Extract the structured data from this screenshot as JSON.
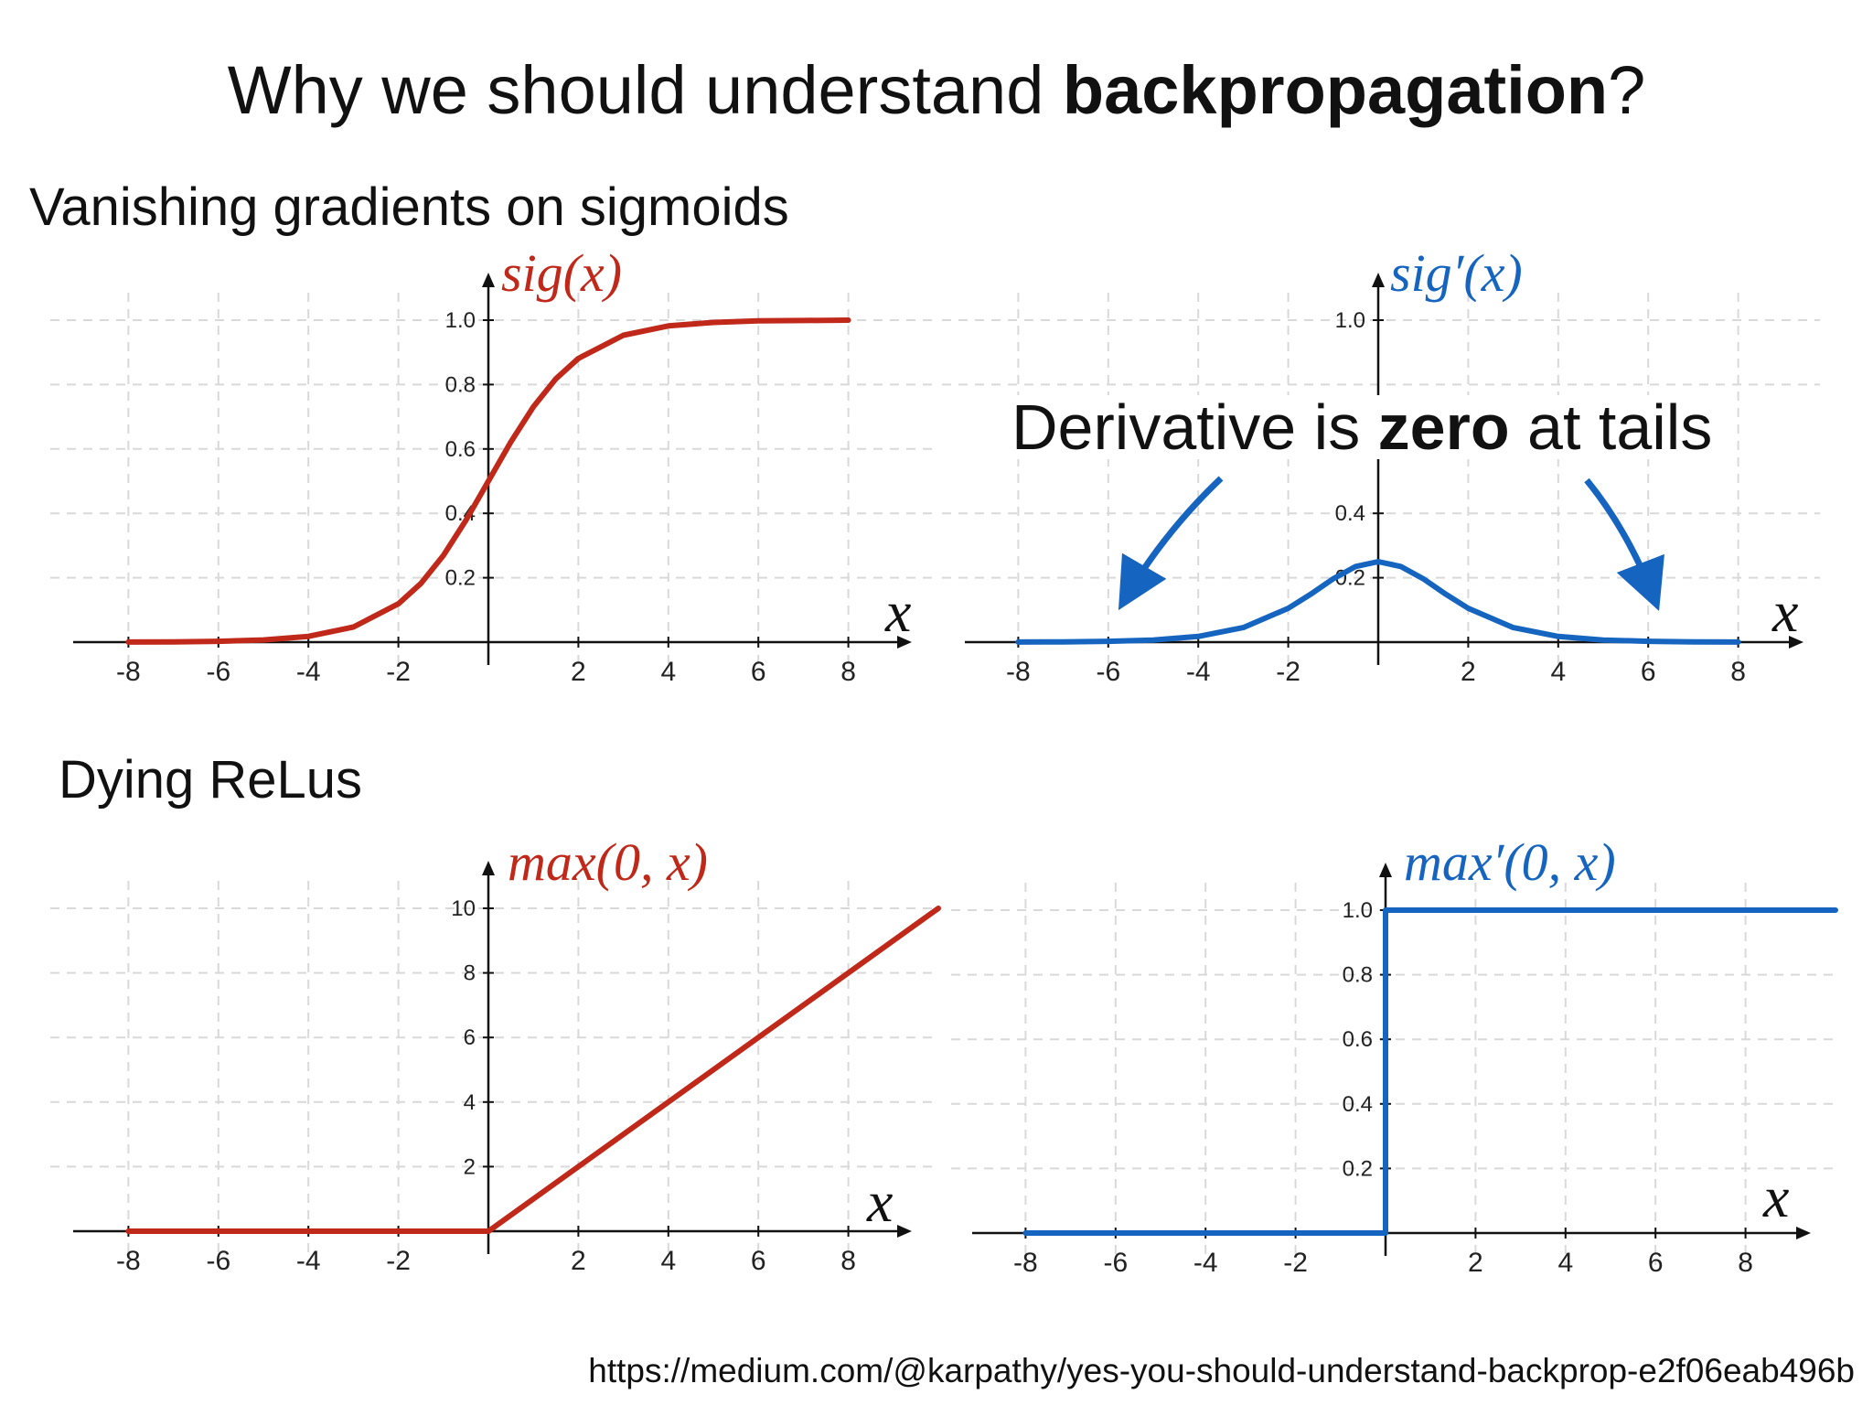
{
  "page": {
    "title_pre": "Why we should understand ",
    "title_bold": "backpropagation",
    "title_post": "?",
    "section_sigmoid": "Vanishing gradients on sigmoids",
    "section_relu": "Dying ReLus",
    "callout_pre": "Derivative is ",
    "callout_bold": "zero",
    "callout_post": " at tails",
    "url": "https://medium.com/@karpathy/yes-you-should-understand-backprop-e2f06eab496b"
  },
  "colors": {
    "red": "#c0281a",
    "blue": "#1565c0",
    "grid": "#d9d9d9",
    "axis": "#111111"
  },
  "chart_data": [
    {
      "id": "sig",
      "type": "line",
      "title": "sig(x)",
      "xlabel": "x",
      "color": "#c0281a",
      "xlim": [
        -8,
        8
      ],
      "ylim": [
        0,
        1
      ],
      "xticks": [
        "-8",
        "-6",
        "-4",
        "-2",
        "2",
        "4",
        "6",
        "8"
      ],
      "yticks": [
        "0.2",
        "0.4",
        "0.6",
        "0.8",
        "1.0"
      ],
      "x": [
        -8,
        -7,
        -6,
        -5,
        -4,
        -3,
        -2,
        -1.5,
        -1,
        -0.5,
        0,
        0.5,
        1,
        1.5,
        2,
        3,
        4,
        5,
        6,
        7,
        8
      ],
      "y": [
        0.0003,
        0.0009,
        0.0025,
        0.0067,
        0.018,
        0.047,
        0.119,
        0.182,
        0.269,
        0.378,
        0.5,
        0.622,
        0.731,
        0.818,
        0.881,
        0.953,
        0.982,
        0.993,
        0.998,
        0.999,
        1.0
      ]
    },
    {
      "id": "dsig",
      "type": "line",
      "title": "sig′(x)",
      "xlabel": "x",
      "color": "#1565c0",
      "xlim": [
        -8,
        8
      ],
      "ylim": [
        0,
        1
      ],
      "xticks": [
        "-8",
        "-6",
        "-4",
        "-2",
        "2",
        "4",
        "6",
        "8"
      ],
      "yticks": [
        "0.2",
        "0.4",
        "1.0"
      ],
      "x": [
        -8,
        -7,
        -6,
        -5,
        -4,
        -3,
        -2,
        -1.5,
        -1,
        -0.5,
        0,
        0.5,
        1,
        1.5,
        2,
        3,
        4,
        5,
        6,
        7,
        8
      ],
      "y": [
        0.0003,
        0.0009,
        0.0025,
        0.0066,
        0.0177,
        0.0452,
        0.105,
        0.149,
        0.197,
        0.235,
        0.25,
        0.235,
        0.197,
        0.149,
        0.105,
        0.0452,
        0.0177,
        0.0066,
        0.0025,
        0.0009,
        0.0003
      ]
    },
    {
      "id": "relu",
      "type": "line",
      "title": "max(0, x)",
      "xlabel": "x",
      "color": "#c0281a",
      "xlim": [
        -8,
        9.5
      ],
      "ylim": [
        0,
        10
      ],
      "xticks": [
        "-8",
        "-6",
        "-4",
        "-2",
        "2",
        "4",
        "6",
        "8"
      ],
      "yticks": [
        "2",
        "4",
        "6",
        "8",
        "10"
      ],
      "x": [
        -8,
        0,
        10
      ],
      "y": [
        0,
        0,
        10
      ]
    },
    {
      "id": "drelu",
      "type": "line",
      "title": "max′(0, x)",
      "xlabel": "x",
      "color": "#1565c0",
      "xlim": [
        -8,
        10
      ],
      "ylim": [
        0,
        1
      ],
      "xticks": [
        "-8",
        "-6",
        "-4",
        "-2",
        "2",
        "4",
        "6",
        "8"
      ],
      "yticks": [
        "0.2",
        "0.4",
        "0.6",
        "0.8",
        "1.0"
      ],
      "x": [
        -8,
        0,
        0,
        10
      ],
      "y": [
        0,
        0,
        1,
        1
      ]
    }
  ]
}
